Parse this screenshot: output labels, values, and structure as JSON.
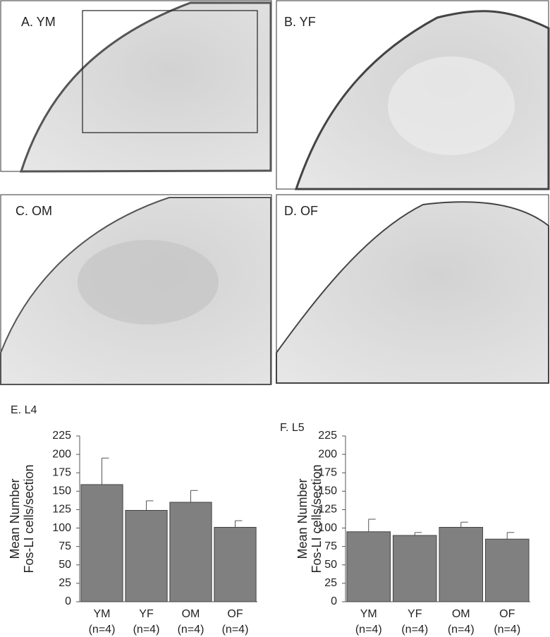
{
  "panels": [
    {
      "label": "A. YM"
    },
    {
      "label": "B. YF"
    },
    {
      "label": "C. OM"
    },
    {
      "label": "D. OF"
    }
  ],
  "chart_data": [
    {
      "type": "bar",
      "title": "E. L4",
      "y_label": [
        "Mean Number",
        "Fos-LI cells/section"
      ],
      "categories": [
        "YM",
        "YF",
        "OM",
        "OF"
      ],
      "n_labels": [
        "(n=4)",
        "(n=4)",
        "(n=4)",
        "(n=4)"
      ],
      "values": [
        159,
        124,
        135,
        101
      ],
      "errors": [
        36,
        13,
        16,
        9
      ],
      "color": "#808080",
      "ylim": [
        0,
        225
      ],
      "yticks": [
        0,
        25,
        50,
        75,
        100,
        125,
        150,
        175,
        200,
        225
      ]
    },
    {
      "type": "bar",
      "title": "F. L5",
      "y_label": [
        "Mean Number",
        "Fos-LI cells/section"
      ],
      "categories": [
        "YM",
        "YF",
        "OM",
        "OF"
      ],
      "n_labels": [
        "(n=4)",
        "(n=4)",
        "(n=4)",
        "(n=4)"
      ],
      "values": [
        95,
        90,
        101,
        85
      ],
      "errors": [
        17,
        4,
        7,
        9
      ],
      "color": "#808080",
      "ylim": [
        0,
        225
      ],
      "yticks": [
        0,
        25,
        50,
        75,
        100,
        125,
        150,
        175,
        200,
        225
      ]
    }
  ]
}
